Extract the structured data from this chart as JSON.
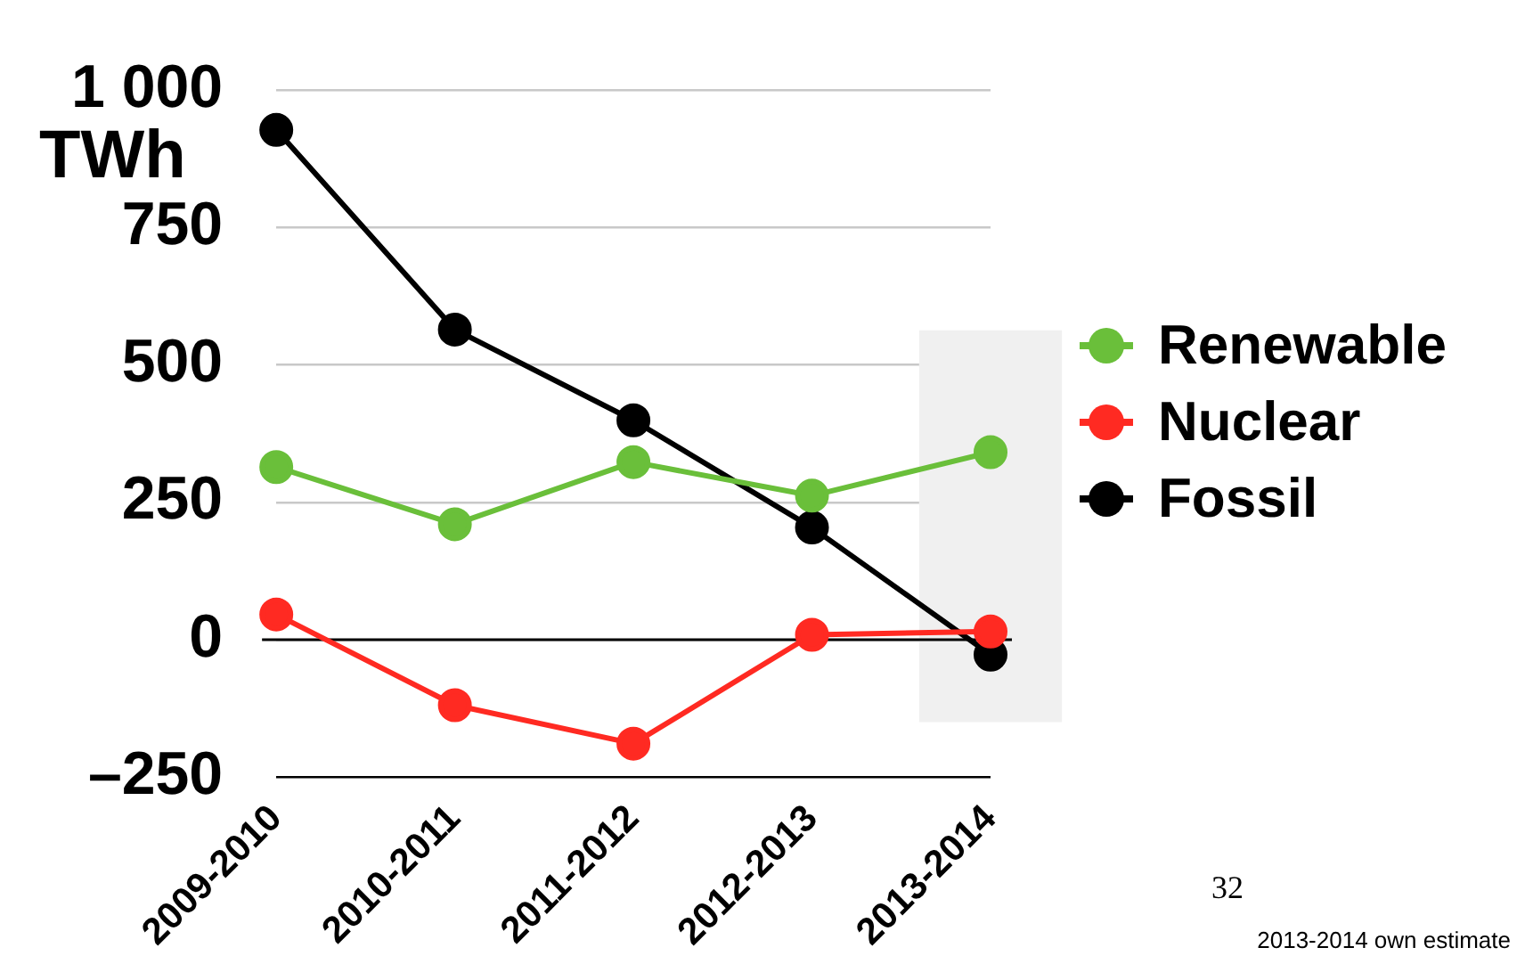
{
  "chart_data": {
    "type": "line",
    "ylabel": "TWh",
    "categories": [
      "2009-2010",
      "2010-2011",
      "2011-2012",
      "2012-2013",
      "2013-2014"
    ],
    "series": [
      {
        "name": "Renewable",
        "color": "#6abf3a",
        "values": [
          314,
          210,
          323,
          262,
          341
        ]
      },
      {
        "name": "Nuclear",
        "color": "#ff2a22",
        "values": [
          46,
          -119,
          -189,
          9,
          15
        ]
      },
      {
        "name": "Fossil",
        "color": "#000000",
        "values": [
          927,
          564,
          399,
          204,
          -27
        ]
      }
    ],
    "ylim": [
      -250,
      1000
    ],
    "yticks": [
      {
        "value": -250,
        "label": "–250"
      },
      0,
      250,
      500,
      750,
      {
        "value": 1000,
        "label": "1 000"
      }
    ],
    "grid": "y",
    "legend": "right",
    "marker": "circle",
    "line_style": "solid",
    "ref_lines": [
      {
        "axis": "y",
        "value": 0,
        "color": "#000000"
      }
    ],
    "bands": [
      {
        "axis": "x",
        "from": "2013-2014",
        "to": "2013-2014",
        "color": "#f0f0f0"
      }
    ],
    "annotations": [
      "32",
      "2013-2014 own estimate"
    ]
  }
}
